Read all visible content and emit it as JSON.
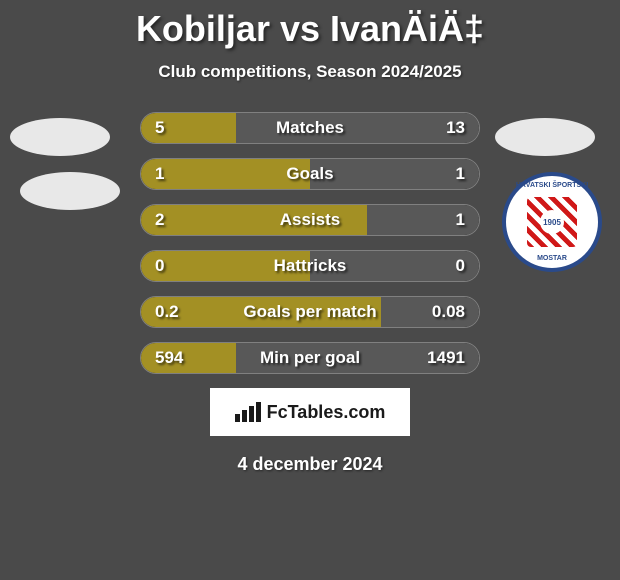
{
  "title": "Kobiljar vs IvanÄiÄ‡",
  "subtitle": "Club competitions, Season 2024/2025",
  "date": "4 december 2024",
  "footer_brand": "FcTables.com",
  "colors": {
    "background": "#4a4a4a",
    "bar_bg": "#2a2a2a",
    "player_left": "#a39024",
    "player_right": "#585858",
    "text": "#ffffff"
  },
  "badge": {
    "text_top": "HRVATSKI ŠPORTSKI",
    "text_bottom": "MOSTAR",
    "center_text": "1905",
    "border_color": "#2a4a8a",
    "checker_color": "#d01818"
  },
  "stats": [
    {
      "label": "Matches",
      "left_value": "5",
      "right_value": "13",
      "left_pct": 28,
      "right_pct": 72
    },
    {
      "label": "Goals",
      "left_value": "1",
      "right_value": "1",
      "left_pct": 50,
      "right_pct": 50
    },
    {
      "label": "Assists",
      "left_value": "2",
      "right_value": "1",
      "left_pct": 67,
      "right_pct": 33
    },
    {
      "label": "Hattricks",
      "left_value": "0",
      "right_value": "0",
      "left_pct": 50,
      "right_pct": 50
    },
    {
      "label": "Goals per match",
      "left_value": "0.2",
      "right_value": "0.08",
      "left_pct": 71,
      "right_pct": 29
    },
    {
      "label": "Min per goal",
      "left_value": "594",
      "right_value": "1491",
      "left_pct": 28,
      "right_pct": 72
    }
  ]
}
